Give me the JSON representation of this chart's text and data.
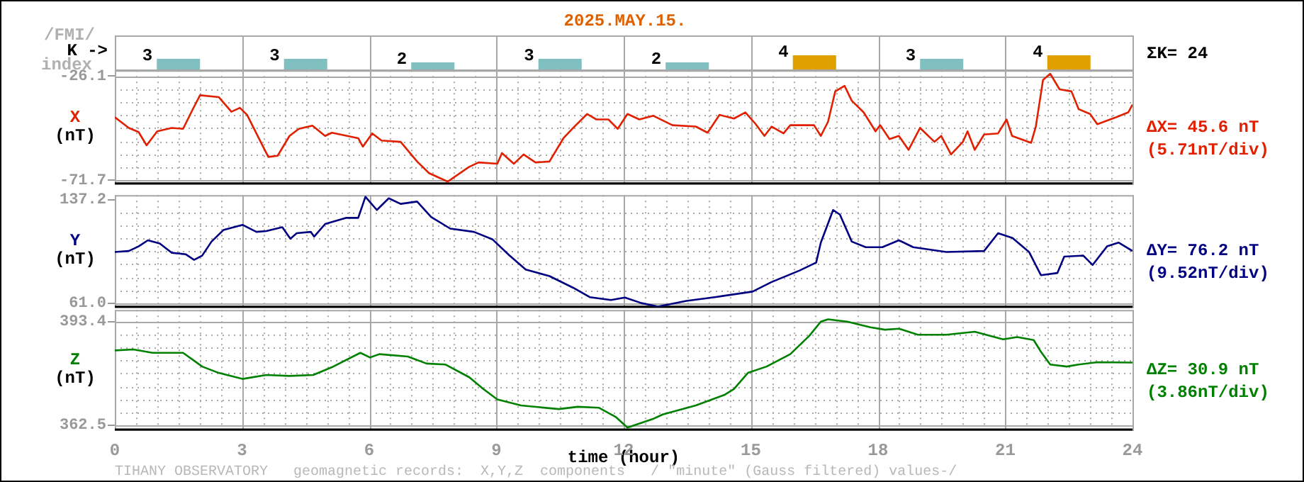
{
  "chart_data": [
    {
      "type": "bar",
      "title": "2025.MAY.15.",
      "ylabel": "K ->",
      "annotations": [
        "/FMI/",
        "index",
        "ΣK= 24"
      ],
      "categories": [
        null,
        null,
        null,
        null,
        null,
        null,
        null,
        null
      ],
      "values": [
        3,
        3,
        2,
        3,
        2,
        4,
        3,
        4
      ],
      "colors": [
        "#80c0c0",
        "#80c0c0",
        "#80c0c0",
        "#80c0c0",
        "#80c0c0",
        "#e0a000",
        "#80c0c0",
        "#e0a000"
      ],
      "data_labels": true,
      "grid": "x",
      "legend": false,
      "tick_labels": false
    },
    {
      "type": "line",
      "ylabel": "(nT)",
      "annotations": [
        "ΔX= 45.6 nT",
        "(5.71nT/div)"
      ],
      "x": [
        0,
        0.33,
        0.56,
        0.75,
        1.0,
        1.34,
        1.61,
        1.84,
        2.01,
        2.45,
        2.75,
        2.95,
        3.12,
        3.45,
        3.62,
        3.84,
        4.12,
        4.34,
        4.66,
        4.96,
        5.12,
        5.74,
        5.85,
        6.07,
        6.29,
        6.74,
        7.13,
        7.41,
        7.85,
        8.35,
        8.58,
        9.02,
        9.13,
        9.41,
        9.64,
        9.92,
        10.25,
        10.58,
        10.81,
        11.14,
        11.36,
        11.64,
        11.86,
        12.09,
        12.37,
        12.7,
        13.15,
        13.7,
        13.98,
        14.26,
        14.6,
        14.87,
        15.1,
        15.32,
        15.49,
        15.77,
        15.93,
        16.49,
        16.65,
        16.82,
        16.99,
        17.21,
        17.38,
        17.66,
        17.94,
        18.05,
        18.27,
        18.49,
        18.72,
        18.99,
        19.33,
        19.49,
        19.72,
        20.0,
        20.11,
        20.28,
        20.5,
        20.83,
        21.03,
        21.16,
        21.61,
        21.72,
        21.89,
        22.06,
        22.28,
        22.56,
        22.73,
        23.0,
        23.17,
        23.62,
        23.9,
        24
      ],
      "series": [
        {
          "name": "X",
          "color": "#e02000",
          "values": [
            -44.1,
            -48.8,
            -50.6,
            -56.4,
            -50.3,
            -48.8,
            -49.2,
            -40.6,
            -34.5,
            -35.3,
            -41.7,
            -40.0,
            -43.1,
            -55.3,
            -61.5,
            -61.0,
            -52.3,
            -49.2,
            -47.8,
            -52.3,
            -50.9,
            -53.3,
            -57.0,
            -51.2,
            -54.3,
            -54.9,
            -63.5,
            -68.6,
            -72.3,
            -65.9,
            -63.9,
            -64.5,
            -59.8,
            -64.5,
            -60.4,
            -63.9,
            -63.5,
            -53.3,
            -48.8,
            -42.7,
            -45.1,
            -45.1,
            -49.2,
            -42.7,
            -45.1,
            -43.5,
            -47.6,
            -48.2,
            -50.9,
            -43.1,
            -44.7,
            -42.0,
            -46.8,
            -52.3,
            -48.2,
            -51.2,
            -47.6,
            -47.6,
            -52.3,
            -46.1,
            -32.8,
            -30.4,
            -36.9,
            -42.0,
            -50.3,
            -47.6,
            -53.7,
            -52.3,
            -58.4,
            -48.8,
            -54.9,
            -52.3,
            -60.4,
            -54.9,
            -50.3,
            -58.4,
            -51.7,
            -51.2,
            -45.1,
            -52.3,
            -55.3,
            -48.2,
            -27.8,
            -25.1,
            -31.9,
            -32.8,
            -40.6,
            -42.7,
            -47.2,
            -44.1,
            -42.0,
            -38.6
          ]
        }
      ],
      "xlim": [
        0,
        24
      ],
      "xticks": [
        0,
        {
          "value": 0.5,
          "label": null
        },
        {
          "value": 1,
          "label": null
        },
        {
          "value": 1.5,
          "label": null
        },
        {
          "value": 2,
          "label": null
        },
        {
          "value": 2.5,
          "label": null
        },
        3,
        {
          "value": 3.5,
          "label": null
        },
        {
          "value": 4,
          "label": null
        },
        {
          "value": 4.5,
          "label": null
        },
        {
          "value": 5,
          "label": null
        },
        {
          "value": 5.5,
          "label": null
        },
        6,
        {
          "value": 6.5,
          "label": null
        },
        {
          "value": 7,
          "label": null
        },
        {
          "value": 7.5,
          "label": null
        },
        {
          "value": 8,
          "label": null
        },
        {
          "value": 8.5,
          "label": null
        },
        9,
        {
          "value": 9.5,
          "label": null
        },
        {
          "value": 10,
          "label": null
        },
        {
          "value": 10.5,
          "label": null
        },
        {
          "value": 11,
          "label": null
        },
        {
          "value": 11.5,
          "label": null
        },
        12,
        {
          "value": 12.5,
          "label": null
        },
        {
          "value": 13,
          "label": null
        },
        {
          "value": 13.5,
          "label": null
        },
        {
          "value": 14,
          "label": null
        },
        {
          "value": 14.5,
          "label": null
        },
        15,
        {
          "value": 15.5,
          "label": null
        },
        {
          "value": 16,
          "label": null
        },
        {
          "value": 16.5,
          "label": null
        },
        {
          "value": 17,
          "label": null
        },
        {
          "value": 17.5,
          "label": null
        },
        18,
        {
          "value": 18.5,
          "label": null
        },
        {
          "value": 19,
          "label": null
        },
        {
          "value": 19.5,
          "label": null
        },
        {
          "value": 20,
          "label": null
        },
        {
          "value": 20.5,
          "label": null
        },
        21,
        {
          "value": 21.5,
          "label": null
        },
        {
          "value": 22,
          "label": null
        },
        {
          "value": 22.5,
          "label": null
        },
        {
          "value": 23,
          "label": null
        },
        {
          "value": 23.5,
          "label": null
        },
        24
      ],
      "ylim": [
        -73.1,
        -23.6
      ],
      "yticks": [
        -71.7,
        {
          "value": -66.0,
          "label": null
        },
        {
          "value": -60.3,
          "label": null
        },
        {
          "value": -54.6,
          "label": null
        },
        {
          "value": -48.9,
          "label": null
        },
        {
          "value": -43.2,
          "label": null
        },
        {
          "value": -37.5,
          "label": null
        },
        {
          "value": -31.8,
          "label": null
        },
        -26.1
      ],
      "grid": true,
      "legend": false,
      "marker": "none",
      "line_style": "solid",
      "tick_labels": "y"
    },
    {
      "type": "line",
      "ylabel": "(nT)",
      "annotations": [
        "ΔY= 76.2 nT",
        "(9.52nT/div)"
      ],
      "x": [
        0,
        0.33,
        0.56,
        0.78,
        1.06,
        1.34,
        1.67,
        1.87,
        2.06,
        2.28,
        2.56,
        3.01,
        3.34,
        3.57,
        3.95,
        4.14,
        4.29,
        4.62,
        4.7,
        4.96,
        5.46,
        5.74,
        5.91,
        6.18,
        6.46,
        6.74,
        7.13,
        7.46,
        7.91,
        8.47,
        8.91,
        9.3,
        9.69,
        10.25,
        10.81,
        11.2,
        11.7,
        12.03,
        12.42,
        12.81,
        13.48,
        14.15,
        15.04,
        15.48,
        16.15,
        16.54,
        16.65,
        16.94,
        17.1,
        17.38,
        17.71,
        18.1,
        18.49,
        18.83,
        19.61,
        20.5,
        20.83,
        21.17,
        21.56,
        21.84,
        22.23,
        22.39,
        22.84,
        23.06,
        23.4,
        23.67,
        24
      ],
      "series": [
        {
          "name": "Y",
          "color": "#000080",
          "values": [
            98.7,
            99.4,
            102.8,
            107.3,
            104.9,
            98.1,
            97.0,
            92.9,
            96.0,
            106.3,
            114.8,
            118.7,
            113.5,
            114.1,
            116.9,
            108.4,
            112.5,
            113.5,
            110.0,
            119.3,
            123.8,
            123.8,
            139.3,
            129.6,
            138.2,
            134.1,
            135.8,
            124.4,
            115.9,
            113.5,
            107.9,
            96.3,
            85.7,
            80.9,
            72.3,
            65.4,
            63.3,
            65.1,
            61.0,
            58.5,
            62.6,
            65.4,
            69.5,
            76.4,
            85.0,
            90.9,
            105.6,
            129.6,
            126.2,
            106.3,
            102.2,
            102.2,
            107.3,
            102.2,
            98.7,
            99.4,
            112.5,
            109.0,
            98.7,
            81.6,
            83.2,
            95.3,
            96.0,
            89.1,
            102.8,
            105.6,
            99.4
          ]
        }
      ],
      "xlim": [
        0,
        24
      ],
      "xticks": [
        0,
        {
          "value": 0.5,
          "label": null
        },
        {
          "value": 1,
          "label": null
        },
        {
          "value": 1.5,
          "label": null
        },
        {
          "value": 2,
          "label": null
        },
        {
          "value": 2.5,
          "label": null
        },
        3,
        {
          "value": 3.5,
          "label": null
        },
        {
          "value": 4,
          "label": null
        },
        {
          "value": 4.5,
          "label": null
        },
        {
          "value": 5,
          "label": null
        },
        {
          "value": 5.5,
          "label": null
        },
        6,
        {
          "value": 6.5,
          "label": null
        },
        {
          "value": 7,
          "label": null
        },
        {
          "value": 7.5,
          "label": null
        },
        {
          "value": 8,
          "label": null
        },
        {
          "value": 8.5,
          "label": null
        },
        9,
        {
          "value": 9.5,
          "label": null
        },
        {
          "value": 10,
          "label": null
        },
        {
          "value": 10.5,
          "label": null
        },
        {
          "value": 11,
          "label": null
        },
        {
          "value": 11.5,
          "label": null
        },
        12,
        {
          "value": 12.5,
          "label": null
        },
        {
          "value": 13,
          "label": null
        },
        {
          "value": 13.5,
          "label": null
        },
        {
          "value": 14,
          "label": null
        },
        {
          "value": 14.5,
          "label": null
        },
        15,
        {
          "value": 15.5,
          "label": null
        },
        {
          "value": 16,
          "label": null
        },
        {
          "value": 16.5,
          "label": null
        },
        {
          "value": 17,
          "label": null
        },
        {
          "value": 17.5,
          "label": null
        },
        18,
        {
          "value": 18.5,
          "label": null
        },
        {
          "value": 19,
          "label": null
        },
        {
          "value": 19.5,
          "label": null
        },
        {
          "value": 20,
          "label": null
        },
        {
          "value": 20.5,
          "label": null
        },
        21,
        {
          "value": 21.5,
          "label": null
        },
        {
          "value": 22,
          "label": null
        },
        {
          "value": 22.5,
          "label": null
        },
        {
          "value": 23,
          "label": null
        },
        {
          "value": 23.5,
          "label": null
        },
        24
      ],
      "ylim": [
        58.3,
        140.6
      ],
      "yticks": [
        {
          "value": 61.0,
          "label": "61.0"
        },
        {
          "value": 70.5,
          "label": null
        },
        {
          "value": 80.0,
          "label": null
        },
        {
          "value": 89.6,
          "label": null
        },
        {
          "value": 99.1,
          "label": null
        },
        {
          "value": 108.6,
          "label": null
        },
        {
          "value": 118.2,
          "label": null
        },
        {
          "value": 127.7,
          "label": null
        },
        137.2
      ],
      "grid": true,
      "legend": false,
      "marker": "none",
      "line_style": "solid",
      "tick_labels": "y"
    },
    {
      "type": "line",
      "xlabel": "time (hour)",
      "ylabel": "(nT)",
      "annotations": [
        "ΔZ= 30.9 nT",
        "(3.86nT/div)",
        "TIHANY OBSERVATORY   geomagnetic records:  X,Y,Z  components   / \"minute\" (Gauss filtered) values-/"
      ],
      "x": [
        0,
        0.44,
        0.89,
        1.61,
        2.06,
        2.45,
        3.01,
        3.57,
        4.12,
        4.68,
        5.12,
        5.79,
        6.02,
        6.24,
        6.91,
        7.35,
        7.8,
        8.36,
        8.69,
        9.02,
        9.58,
        10.47,
        10.92,
        11.42,
        11.81,
        12.09,
        12.68,
        12.92,
        13.7,
        14.37,
        14.6,
        14.93,
        15.37,
        15.93,
        16.38,
        16.65,
        16.82,
        17.27,
        17.82,
        18.16,
        18.49,
        18.94,
        19.61,
        20.28,
        20.95,
        21.28,
        21.67,
        21.84,
        22.06,
        22.45,
        22.73,
        23.17,
        24
      ],
      "series": [
        {
          "name": "Z",
          "color": "#008000",
          "values": [
            384.8,
            385.1,
            384.1,
            384.1,
            380.0,
            378.1,
            376.3,
            377.5,
            377.2,
            377.5,
            379.8,
            384.1,
            382.7,
            383.7,
            383.0,
            380.9,
            380.6,
            376.8,
            373.3,
            370.2,
            368.4,
            367.3,
            368.0,
            367.7,
            365.0,
            361.8,
            364.3,
            365.7,
            368.4,
            371.5,
            373.3,
            378.1,
            380.0,
            383.7,
            389.2,
            393.4,
            394.1,
            393.4,
            391.7,
            391.0,
            391.3,
            389.5,
            389.5,
            390.4,
            388.1,
            388.8,
            387.9,
            384.4,
            380.6,
            380.0,
            380.6,
            381.3,
            381.2
          ]
        }
      ],
      "xlim": [
        0,
        24
      ],
      "xticks": [
        0,
        {
          "value": 0.5,
          "label": null
        },
        {
          "value": 1,
          "label": null
        },
        {
          "value": 1.5,
          "label": null
        },
        {
          "value": 2,
          "label": null
        },
        {
          "value": 2.5,
          "label": null
        },
        3,
        {
          "value": 3.5,
          "label": null
        },
        {
          "value": 4,
          "label": null
        },
        {
          "value": 4.5,
          "label": null
        },
        {
          "value": 5,
          "label": null
        },
        {
          "value": 5.5,
          "label": null
        },
        6,
        {
          "value": 6.5,
          "label": null
        },
        {
          "value": 7,
          "label": null
        },
        {
          "value": 7.5,
          "label": null
        },
        {
          "value": 8,
          "label": null
        },
        {
          "value": 8.5,
          "label": null
        },
        9,
        {
          "value": 9.5,
          "label": null
        },
        {
          "value": 10,
          "label": null
        },
        {
          "value": 10.5,
          "label": null
        },
        {
          "value": 11,
          "label": null
        },
        {
          "value": 11.5,
          "label": null
        },
        12,
        {
          "value": 12.5,
          "label": null
        },
        {
          "value": 13,
          "label": null
        },
        {
          "value": 13.5,
          "label": null
        },
        {
          "value": 14,
          "label": null
        },
        {
          "value": 14.5,
          "label": null
        },
        15,
        {
          "value": 15.5,
          "label": null
        },
        {
          "value": 16,
          "label": null
        },
        {
          "value": 16.5,
          "label": null
        },
        {
          "value": 17,
          "label": null
        },
        {
          "value": 17.5,
          "label": null
        },
        18,
        {
          "value": 18.5,
          "label": null
        },
        {
          "value": 19,
          "label": null
        },
        {
          "value": 19.5,
          "label": null
        },
        {
          "value": 20,
          "label": null
        },
        {
          "value": 20.5,
          "label": null
        },
        21,
        {
          "value": 21.5,
          "label": null
        },
        {
          "value": 22,
          "label": null
        },
        {
          "value": 22.5,
          "label": null
        },
        {
          "value": 23,
          "label": null
        },
        {
          "value": 23.5,
          "label": null
        },
        24
      ],
      "ylim": [
        361.2,
        396.9
      ],
      "yticks": [
        362.5,
        {
          "value": 366.4,
          "label": null
        },
        {
          "value": 370.2,
          "label": null
        },
        {
          "value": 374.1,
          "label": null
        },
        {
          "value": 378.0,
          "label": null
        },
        {
          "value": 381.8,
          "label": null
        },
        {
          "value": 385.7,
          "label": null
        },
        {
          "value": 389.5,
          "label": null
        },
        393.4
      ],
      "grid": true,
      "legend": false,
      "marker": "none",
      "line_style": "solid"
    }
  ]
}
